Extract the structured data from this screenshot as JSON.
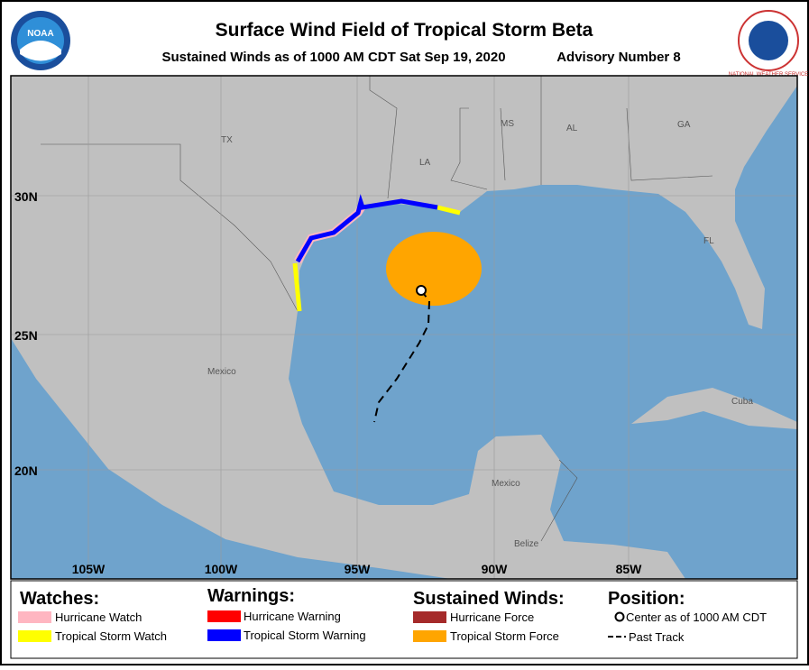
{
  "header": {
    "title": "Surface Wind Field of Tropical Storm Beta",
    "subtitle": "Sustained Winds as of 1000 AM CDT Sat Sep 19, 2020",
    "advisory": "Advisory Number 8"
  },
  "logos": {
    "left": "NOAA",
    "right": "NATIONAL WEATHER SERVICE"
  },
  "map": {
    "latitude_labels": [
      "30N",
      "25N",
      "20N"
    ],
    "longitude_labels": [
      "105W",
      "100W",
      "95W",
      "90W",
      "85W"
    ],
    "place_labels": [
      "TX",
      "LA",
      "MS",
      "AL",
      "GA",
      "FL",
      "Mexico",
      "Cuba",
      "Mexico",
      "Belize"
    ]
  },
  "legend": {
    "watches": {
      "title": "Watches:",
      "items": [
        "Hurricane Watch",
        "Tropical Storm Watch"
      ]
    },
    "warnings": {
      "title": "Warnings:",
      "items": [
        "Hurricane Warning",
        "Tropical Storm Warning"
      ]
    },
    "winds": {
      "title": "Sustained Winds:",
      "items": [
        "Hurricane Force",
        "Tropical Storm Force"
      ]
    },
    "position": {
      "title": "Position:",
      "items": [
        "Center as of 1000 AM CDT",
        "Past Track"
      ]
    }
  }
}
